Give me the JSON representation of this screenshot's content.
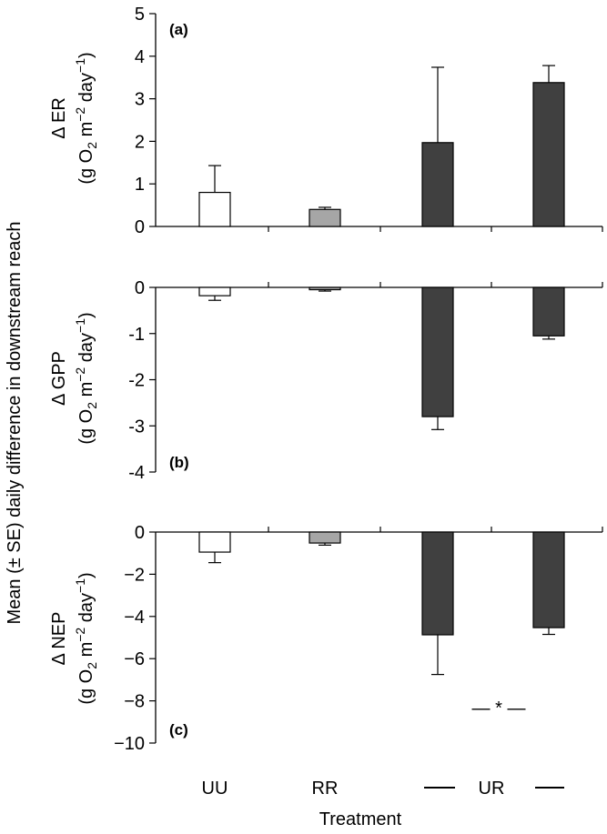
{
  "chart_data": {
    "type": "bar",
    "categories": [
      "UU",
      "RR",
      "UR-1",
      "UR-2"
    ],
    "category_labels": [
      "UU",
      "RR",
      "UR",
      ""
    ],
    "xlabel": "Treatment",
    "shared_ylabel": "Mean (± SE) daily difference in downstream reach",
    "units": {
      "prefix": "(g O",
      "sub2": "2",
      "mid": " m",
      "sup_neg2": "−2",
      "day": " day",
      "sup_neg1": "−1",
      "close": ")"
    },
    "bar_colors": [
      "#ffffff",
      "#a6a6a6",
      "#404040",
      "#404040"
    ],
    "significance_marker": "— * —",
    "ur_bracket": "—",
    "panels": [
      {
        "id": "a",
        "label": "(a)",
        "ylabel": "Δ ER",
        "ylim": [
          0,
          5
        ],
        "ticks": [
          0,
          1,
          2,
          3,
          4,
          5
        ],
        "tick_labels": [
          "0",
          "1",
          "2",
          "3",
          "4",
          "5"
        ],
        "values": [
          0.8,
          0.4,
          1.97,
          3.38
        ],
        "errors": [
          0.63,
          0.05,
          1.77,
          0.4
        ]
      },
      {
        "id": "b",
        "label": "(b)",
        "ylabel": "Δ GPP",
        "ylim": [
          -4,
          0
        ],
        "ticks": [
          0,
          -1,
          -2,
          -3,
          -4
        ],
        "tick_labels": [
          "0",
          "-1",
          "-2",
          "-3",
          "-4"
        ],
        "values": [
          -0.18,
          -0.05,
          -2.8,
          -1.05
        ],
        "errors": [
          0.1,
          0.03,
          0.28,
          0.07
        ]
      },
      {
        "id": "c",
        "label": "(c)",
        "ylabel": "Δ NEP",
        "ylim": [
          -10,
          0
        ],
        "ticks": [
          0,
          -2,
          -4,
          -6,
          -8,
          -10
        ],
        "tick_labels": [
          "0",
          "−2",
          "−4",
          "−6",
          "−8",
          "−10"
        ],
        "values": [
          -0.95,
          -0.52,
          -4.87,
          -4.53
        ],
        "errors": [
          0.5,
          0.1,
          1.88,
          0.32
        ]
      }
    ]
  }
}
